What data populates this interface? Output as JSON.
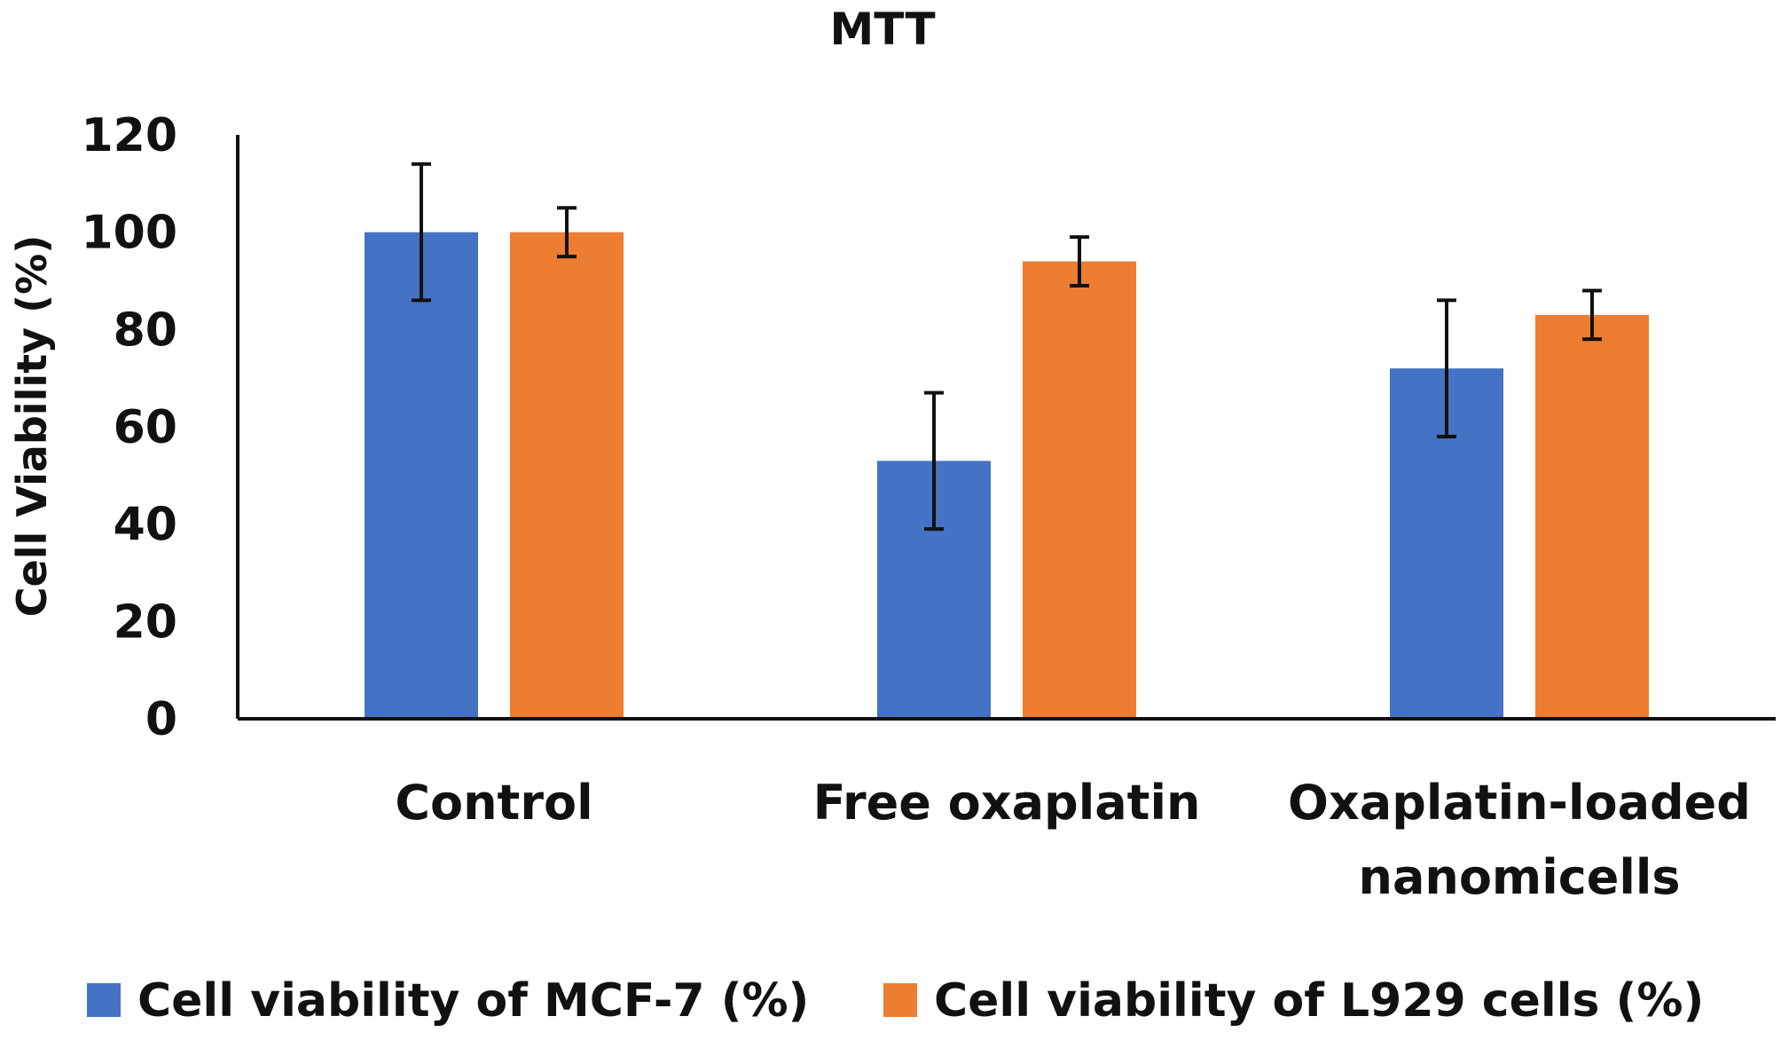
{
  "chart_data": {
    "type": "bar",
    "title": "MTT",
    "ylabel": "Cell Viability (%)",
    "xlabel": "",
    "ylim": [
      0,
      120
    ],
    "yticks": [
      0,
      20,
      40,
      60,
      80,
      100,
      120
    ],
    "categories": [
      [
        "Control"
      ],
      [
        "Free oxaplatin"
      ],
      [
        "Oxaplatin-loaded",
        "nanomicells"
      ]
    ],
    "series": [
      {
        "name": "Cell viability of MCF-7 (%)",
        "color": "#4472C4",
        "values": [
          100,
          53,
          72
        ],
        "errors": [
          14,
          14,
          14
        ]
      },
      {
        "name": "Cell viability of L929 cells (%)",
        "color": "#ED7D31",
        "values": [
          100,
          94,
          83
        ],
        "errors": [
          5,
          5,
          5
        ]
      }
    ],
    "legend_position": "bottom",
    "grid": false
  }
}
